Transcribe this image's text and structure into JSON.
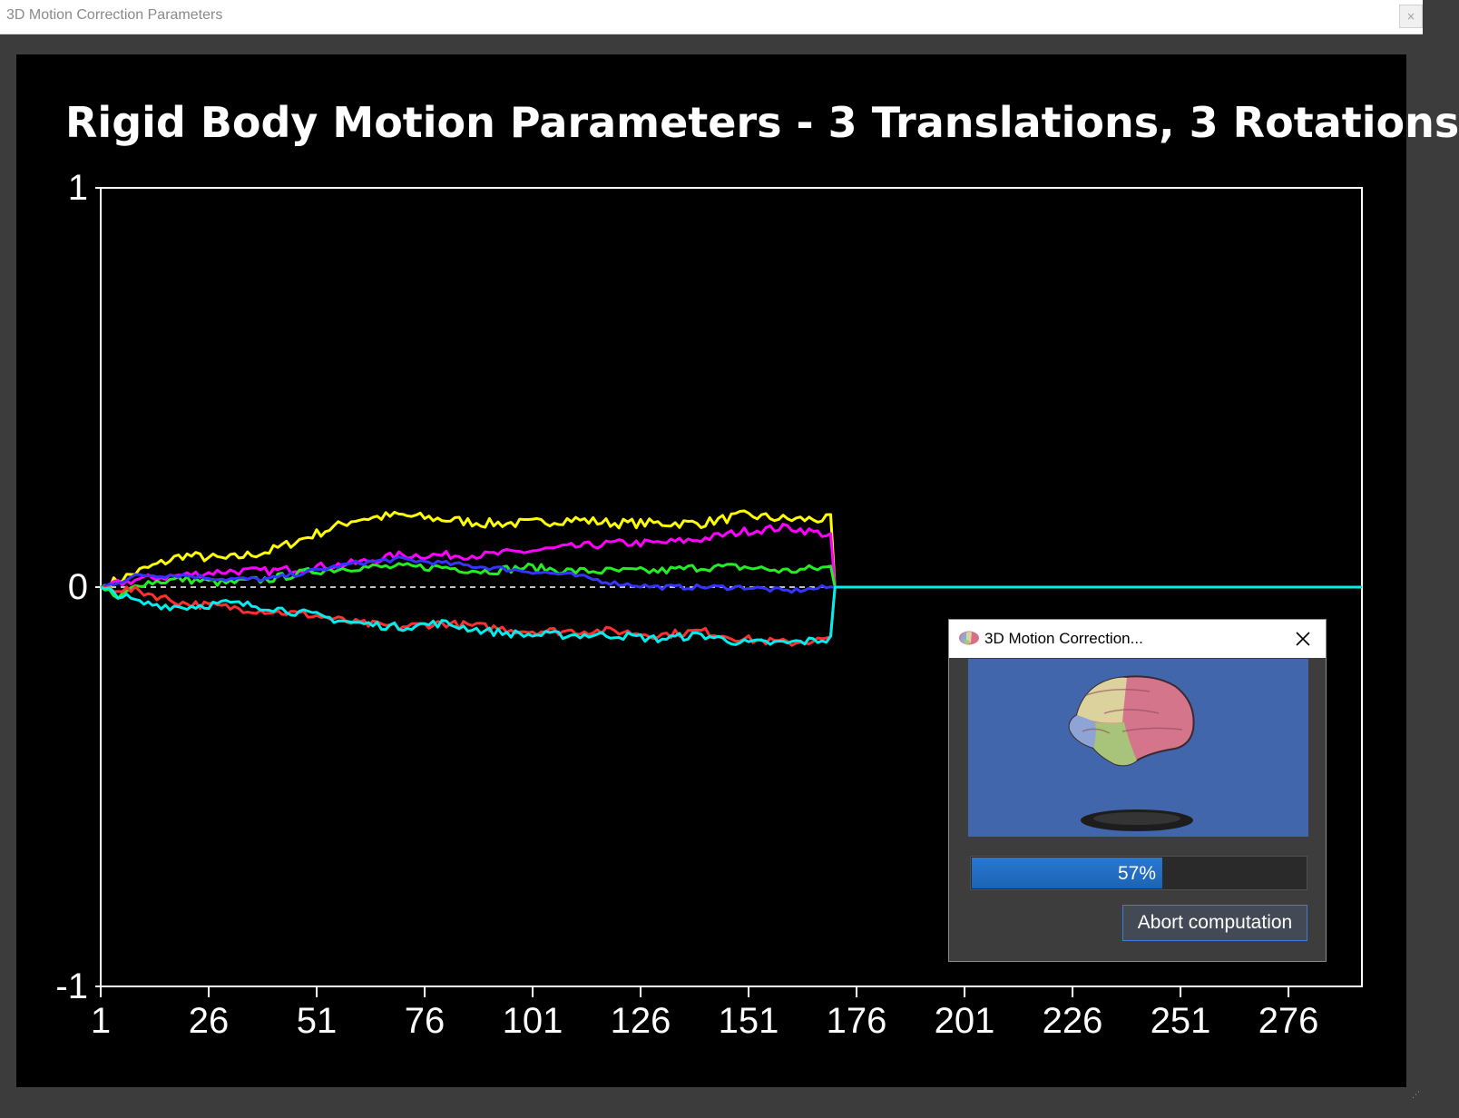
{
  "window": {
    "title": "3D Motion Correction Parameters",
    "close_glyph": "×"
  },
  "chart_data": {
    "type": "line",
    "title": "Rigid Body Motion Parameters - 3 Translations, 3 Rotations",
    "xlabel": "",
    "ylabel": "",
    "ylim": [
      -1,
      1
    ],
    "xlim": [
      1,
      293
    ],
    "y_ticks": [
      "1",
      "0",
      "-1"
    ],
    "x_ticks": [
      "1",
      "26",
      "51",
      "76",
      "101",
      "126",
      "151",
      "176",
      "201",
      "226",
      "251",
      "276"
    ],
    "grid": false,
    "zero_line": "dashed",
    "background": "#000000",
    "total_volumes": 293,
    "processed_volumes": 170,
    "series": [
      {
        "color": "#ffff00",
        "key_x": [
          1,
          10,
          20,
          30,
          40,
          50,
          60,
          70,
          80,
          90,
          100,
          110,
          120,
          130,
          140,
          150,
          160,
          170
        ],
        "key_y": [
          0.0,
          0.04,
          0.08,
          0.07,
          0.09,
          0.13,
          0.17,
          0.18,
          0.17,
          0.16,
          0.16,
          0.17,
          0.16,
          0.16,
          0.16,
          0.18,
          0.17,
          0.17
        ],
        "noise": 0.012
      },
      {
        "color": "#ff00ff",
        "key_x": [
          1,
          10,
          20,
          30,
          40,
          50,
          60,
          70,
          80,
          90,
          100,
          110,
          120,
          130,
          140,
          150,
          160,
          170
        ],
        "key_y": [
          0.0,
          0.02,
          0.03,
          0.04,
          0.04,
          0.05,
          0.06,
          0.08,
          0.08,
          0.08,
          0.09,
          0.1,
          0.11,
          0.11,
          0.12,
          0.14,
          0.15,
          0.13
        ],
        "noise": 0.01
      },
      {
        "color": "#22ee22",
        "key_x": [
          1,
          5,
          10,
          20,
          30,
          40,
          50,
          60,
          70,
          80,
          90,
          100,
          110,
          120,
          130,
          140,
          150,
          160,
          170
        ],
        "key_y": [
          0.0,
          -0.03,
          0.01,
          0.02,
          0.01,
          0.02,
          0.04,
          0.05,
          0.05,
          0.05,
          0.04,
          0.05,
          0.04,
          0.04,
          0.04,
          0.05,
          0.05,
          0.04,
          0.05
        ],
        "noise": 0.01
      },
      {
        "color": "#3535ff",
        "key_x": [
          1,
          10,
          20,
          30,
          40,
          50,
          60,
          70,
          80,
          90,
          100,
          110,
          120,
          130,
          140,
          150,
          160,
          170
        ],
        "key_y": [
          0.0,
          0.03,
          0.03,
          0.02,
          0.02,
          0.04,
          0.06,
          0.07,
          0.06,
          0.05,
          0.04,
          0.03,
          0.01,
          0.0,
          0.0,
          0.0,
          -0.01,
          0.0
        ],
        "noise": 0.006
      },
      {
        "color": "#ff3030",
        "key_x": [
          1,
          10,
          20,
          30,
          40,
          50,
          60,
          70,
          80,
          90,
          100,
          110,
          120,
          130,
          140,
          150,
          160,
          170
        ],
        "key_y": [
          0.0,
          -0.01,
          -0.04,
          -0.05,
          -0.06,
          -0.07,
          -0.09,
          -0.1,
          -0.09,
          -0.1,
          -0.11,
          -0.11,
          -0.11,
          -0.12,
          -0.11,
          -0.13,
          -0.14,
          -0.13
        ],
        "noise": 0.01
      },
      {
        "color": "#00eeee",
        "key_x": [
          1,
          10,
          20,
          30,
          40,
          50,
          60,
          70,
          80,
          90,
          100,
          110,
          120,
          130,
          140,
          150,
          160,
          170
        ],
        "key_y": [
          0.0,
          -0.04,
          -0.05,
          -0.04,
          -0.05,
          -0.07,
          -0.09,
          -0.1,
          -0.09,
          -0.11,
          -0.12,
          -0.12,
          -0.12,
          -0.13,
          -0.12,
          -0.14,
          -0.14,
          -0.13
        ],
        "noise": 0.01
      }
    ]
  },
  "dialog": {
    "title": "3D Motion Correction...",
    "app_icon": "brain-icon",
    "close_icon": "close-icon",
    "preview": "brain-mesh-preview",
    "progress": 0.57,
    "progress_label": "57%",
    "abort_label": "Abort computation",
    "colors": {
      "preview_background": "#4266ab",
      "progress_fill": "#2270c4",
      "button_border": "#3c7fd0"
    }
  }
}
